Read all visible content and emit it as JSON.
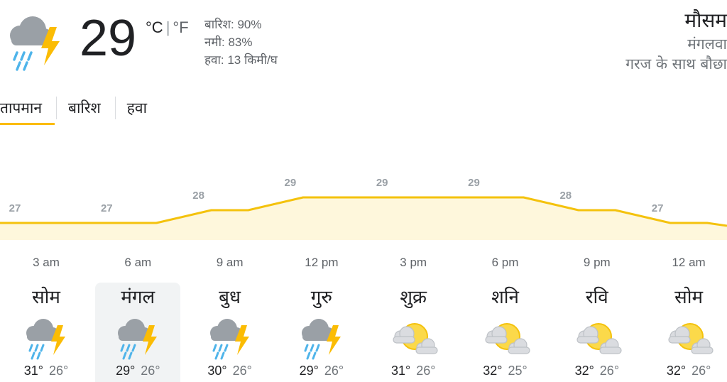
{
  "current": {
    "icon": "thunderstorm-icon",
    "temperature": "29",
    "unit_c": "°C",
    "unit_sep": "|",
    "unit_f": "°F",
    "details": {
      "precip": "बारिश: 90%",
      "humidity": "नमी: 83%",
      "wind": "हवा: 13 किमी/घ"
    }
  },
  "location": {
    "title": "मौसम",
    "day": "मंगलवा",
    "condition": "गरज के साथ बौछा"
  },
  "tabs": [
    {
      "label": "तापमान",
      "active": true
    },
    {
      "label": "बारिश",
      "active": false
    },
    {
      "label": "हवा",
      "active": false
    }
  ],
  "chart_data": {
    "type": "area",
    "x": [
      "3 am",
      "6 am",
      "9 am",
      "12 pm",
      "3 pm",
      "6 pm",
      "9 pm",
      "12 am"
    ],
    "values": [
      27,
      27,
      28,
      29,
      29,
      29,
      28,
      27
    ],
    "value_labels": [
      "27",
      "27",
      "28",
      "29",
      "29",
      "29",
      "28",
      "27"
    ],
    "colors": {
      "line": "#f4c20d",
      "fill": "#fef7dc"
    }
  },
  "days": [
    {
      "name": "सोम",
      "icon": "thunderstorm-icon",
      "high": "31°",
      "low": "26°",
      "selected": false
    },
    {
      "name": "मंगल",
      "icon": "thunderstorm-icon",
      "high": "29°",
      "low": "26°",
      "selected": true
    },
    {
      "name": "बुध",
      "icon": "thunderstorm-icon",
      "high": "30°",
      "low": "26°",
      "selected": false
    },
    {
      "name": "गुरु",
      "icon": "thunderstorm-icon",
      "high": "29°",
      "low": "26°",
      "selected": false
    },
    {
      "name": "शुक्र",
      "icon": "partly-cloudy-icon",
      "high": "31°",
      "low": "26°",
      "selected": false
    },
    {
      "name": "शनि",
      "icon": "partly-cloudy-icon",
      "high": "32°",
      "low": "25°",
      "selected": false
    },
    {
      "name": "रवि",
      "icon": "partly-cloudy-icon",
      "high": "32°",
      "low": "26°",
      "selected": false
    },
    {
      "name": "सोम",
      "icon": "partly-cloudy-icon",
      "high": "32°",
      "low": "26°",
      "selected": false
    }
  ]
}
